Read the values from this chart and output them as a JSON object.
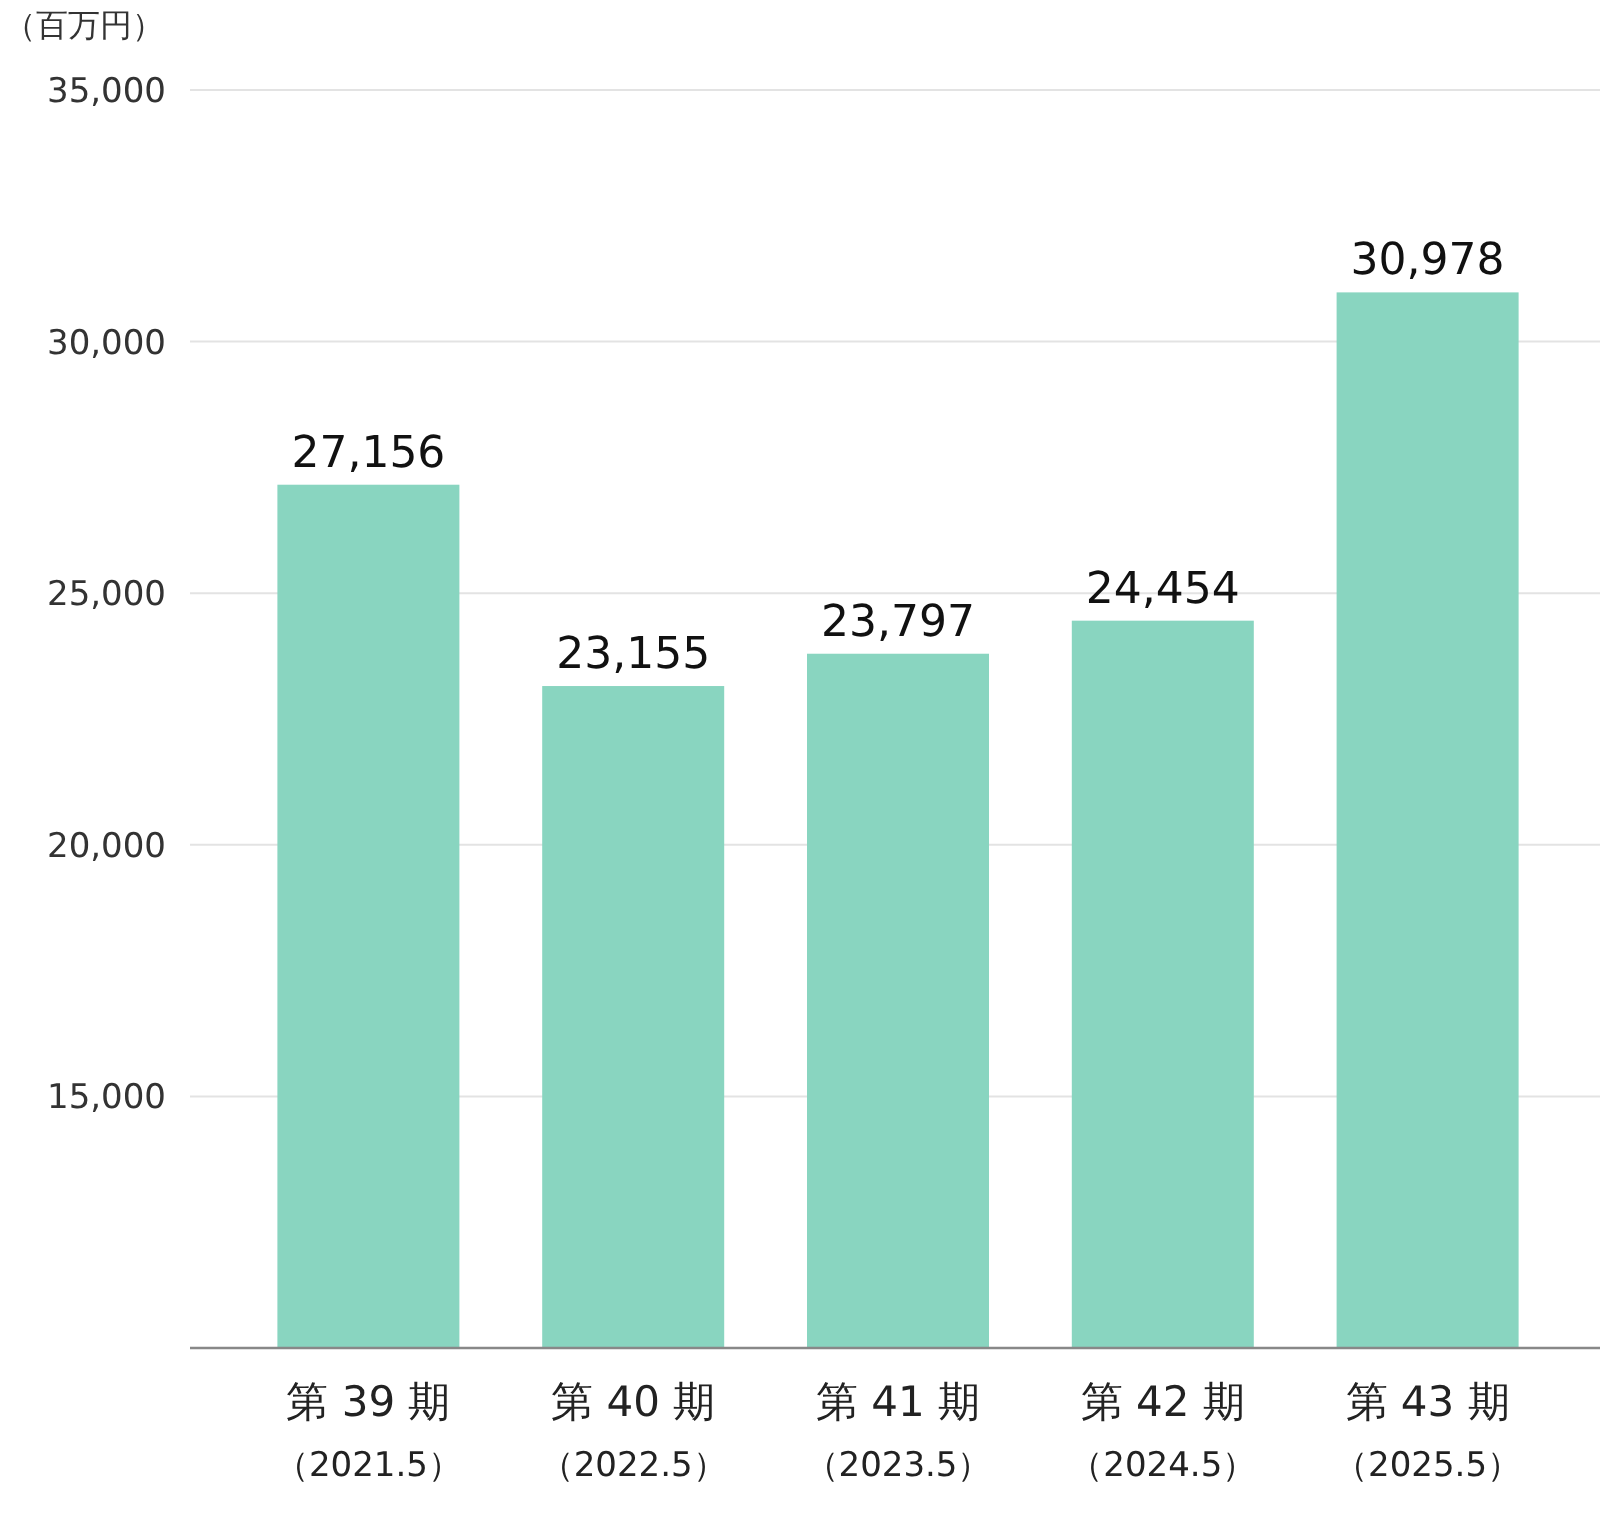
{
  "chart_data": {
    "type": "bar",
    "ylabel": "（百万円）",
    "categories": [
      "第 39 期（2021.5）",
      "第 40 期（2022.5）",
      "第 41 期（2023.5）",
      "第 42 期（2024.5）",
      "第 43 期（2025.5）"
    ],
    "values": [
      27156,
      23155,
      23797,
      24454,
      30978
    ],
    "value_labels": [
      "27,156",
      "23,155",
      "23,797",
      "24,454",
      "30,978"
    ],
    "color": "#89d5c0",
    "ylim": [
      10000,
      35000
    ],
    "yticks": [
      {
        "value": 15000,
        "label": "15,000"
      },
      {
        "value": 20000,
        "label": "20,000"
      },
      {
        "value": 25000,
        "label": "25,000"
      },
      {
        "value": 30000,
        "label": "30,000"
      },
      {
        "value": 35000,
        "label": "35,000"
      }
    ],
    "grid": "y"
  }
}
